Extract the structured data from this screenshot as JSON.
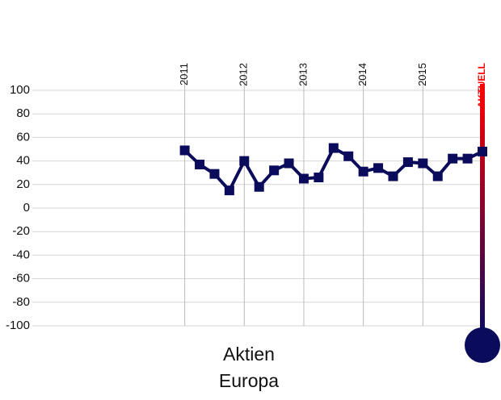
{
  "chart_data": {
    "type": "line",
    "x": [
      2011,
      2011.25,
      2011.5,
      2011.75,
      2012,
      2012.25,
      2012.5,
      2012.75,
      2013,
      2013.25,
      2013.5,
      2013.75,
      2014,
      2014.25,
      2014.5,
      2014.75,
      2015,
      2015.25,
      2015.5,
      2015.75,
      2016
    ],
    "series": [
      {
        "name": "Aktien Europa",
        "color": "#0b0b5c",
        "values": [
          49,
          37,
          29,
          15,
          40,
          18,
          32,
          38,
          25,
          26,
          51,
          44,
          31,
          34,
          27,
          39,
          38,
          27,
          42,
          42,
          48
        ]
      }
    ],
    "xlim": [
      2008.44,
      2016
    ],
    "xticks": [
      2011,
      2012,
      2013,
      2014,
      2015,
      {
        "value": 2016,
        "label": "AKTUELL"
      }
    ],
    "ylim": [
      -100,
      100
    ],
    "yticks": [
      100,
      80,
      60,
      40,
      20,
      0,
      -20,
      -40,
      -60,
      -80,
      -100
    ],
    "grid": true,
    "current_color": "#ff0000",
    "label": [
      "Aktien",
      "Europa"
    ]
  }
}
